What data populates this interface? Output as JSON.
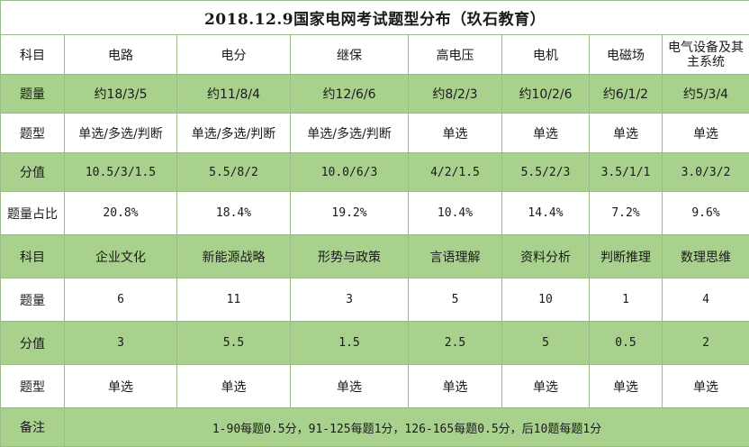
{
  "title": "2018.12.9国家电网考试题型分布（玖石教育）",
  "section1": {
    "header": [
      "科目",
      "电路",
      "电分",
      "继保",
      "高电压",
      "电机",
      "电磁场",
      "电气设备及其主系统"
    ],
    "count": [
      "题量",
      "约18/3/5",
      "约11/8/4",
      "约12/6/6",
      "约8/2/3",
      "约10/2/6",
      "约6/1/2",
      "约5/3/4"
    ],
    "type": [
      "题型",
      "单选/多选/判断",
      "单选/多选/判断",
      "单选/多选/判断",
      "单选",
      "单选",
      "单选",
      "单选"
    ],
    "score": [
      "分值",
      "10.5/3/1.5",
      "5.5/8/2",
      "10.0/6/3",
      "4/2/1.5",
      "5.5/2/3",
      "3.5/1/1",
      "3.0/3/2"
    ],
    "ratio": [
      "题量占比",
      "20.8%",
      "18.4%",
      "19.2%",
      "10.4%",
      "14.4%",
      "7.2%",
      "9.6%"
    ]
  },
  "section2": {
    "header": [
      "科目",
      "企业文化",
      "新能源战略",
      "形势与政策",
      "言语理解",
      "资料分析",
      "判断推理",
      "数理思维"
    ],
    "count": [
      "题量",
      "6",
      "11",
      "3",
      "5",
      "10",
      "1",
      "4"
    ],
    "score": [
      "分值",
      "3",
      "5.5",
      "1.5",
      "2.5",
      "5",
      "0.5",
      "2"
    ],
    "type": [
      "题型",
      "单选",
      "单选",
      "单选",
      "单选",
      "单选",
      "单选",
      "单选"
    ]
  },
  "notes": {
    "label": "备注",
    "text": "1-90每题0.5分，91-125每题1分，126-165每题0.5分，后10题每题1分"
  },
  "colors": {
    "green_row": "#a9d18e",
    "white_row": "#ffffff",
    "border": "#9bb98a"
  }
}
